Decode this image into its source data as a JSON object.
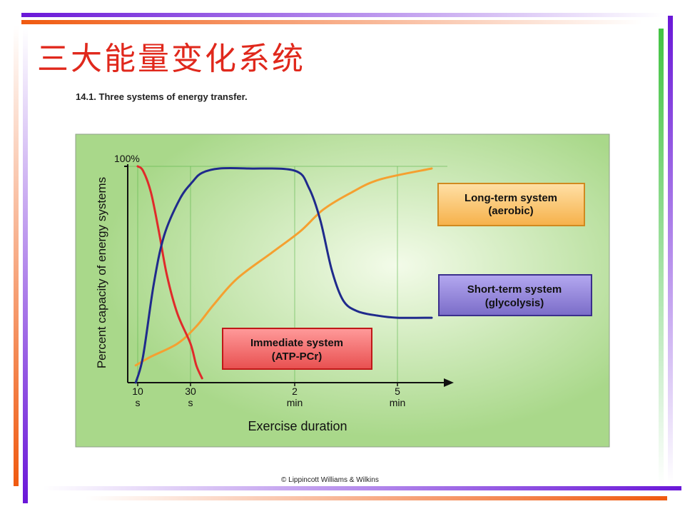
{
  "slide": {
    "title": "三大能量变化系统",
    "figure_caption": "14.1. Three systems of energy transfer.",
    "copyright": "© Lippincott Williams & Wilkins"
  },
  "colors": {
    "panel_bg": "#a9d88a",
    "panel_center": "#f3fbe9",
    "grid": "#5ab54a",
    "immediate": "#e02a2a",
    "short_term": "#1f2a8c",
    "long_term": "#f5a030",
    "label_immediate_bg": "#f56d6d",
    "label_short_bg": "#8b7fd2",
    "label_long_bg": "#fbbf5f"
  },
  "chart_data": {
    "type": "line",
    "xlabel": "Exercise duration",
    "ylabel": "Percent capacity of energy systems",
    "y_tick_label": "100%",
    "ylim": [
      0,
      100
    ],
    "x_ticks": [
      {
        "sec": 10,
        "line1": "10",
        "line2": "s"
      },
      {
        "sec": 30,
        "line1": "30",
        "line2": "s"
      },
      {
        "sec": 120,
        "line1": "2",
        "line2": "min"
      },
      {
        "sec": 300,
        "line1": "5",
        "line2": "min"
      }
    ],
    "grid": true,
    "series": [
      {
        "key": "immediate",
        "name": "Immediate system (ATP-PCr)",
        "label_line1": "Immediate system",
        "label_line2": "(ATP-PCr)",
        "points": [
          [
            10,
            100
          ],
          [
            12,
            98
          ],
          [
            15,
            88
          ],
          [
            18,
            70
          ],
          [
            21,
            50
          ],
          [
            25,
            32
          ],
          [
            30,
            18
          ],
          [
            35,
            8
          ],
          [
            40,
            2
          ]
        ]
      },
      {
        "key": "short_term",
        "name": "Short-term system (glycolysis)",
        "label_line1": "Short-term system",
        "label_line2": "(glycolysis)",
        "points": [
          [
            8,
            0
          ],
          [
            12,
            12
          ],
          [
            16,
            45
          ],
          [
            20,
            68
          ],
          [
            26,
            85
          ],
          [
            32,
            93
          ],
          [
            40,
            97
          ],
          [
            55,
            99
          ],
          [
            80,
            99
          ],
          [
            120,
            98
          ],
          [
            145,
            90
          ],
          [
            165,
            75
          ],
          [
            185,
            52
          ],
          [
            205,
            38
          ],
          [
            230,
            33
          ],
          [
            265,
            31
          ],
          [
            300,
            30
          ],
          [
            330,
            30
          ]
        ]
      },
      {
        "key": "long_term",
        "name": "Long-term system (aerobic)",
        "label_line1": "Long-term system",
        "label_line2": "(aerobic)",
        "points": [
          [
            8,
            8
          ],
          [
            15,
            12
          ],
          [
            25,
            18
          ],
          [
            35,
            26
          ],
          [
            50,
            36
          ],
          [
            70,
            48
          ],
          [
            100,
            60
          ],
          [
            130,
            70
          ],
          [
            170,
            80
          ],
          [
            220,
            88
          ],
          [
            270,
            94
          ],
          [
            330,
            99
          ]
        ]
      }
    ]
  }
}
